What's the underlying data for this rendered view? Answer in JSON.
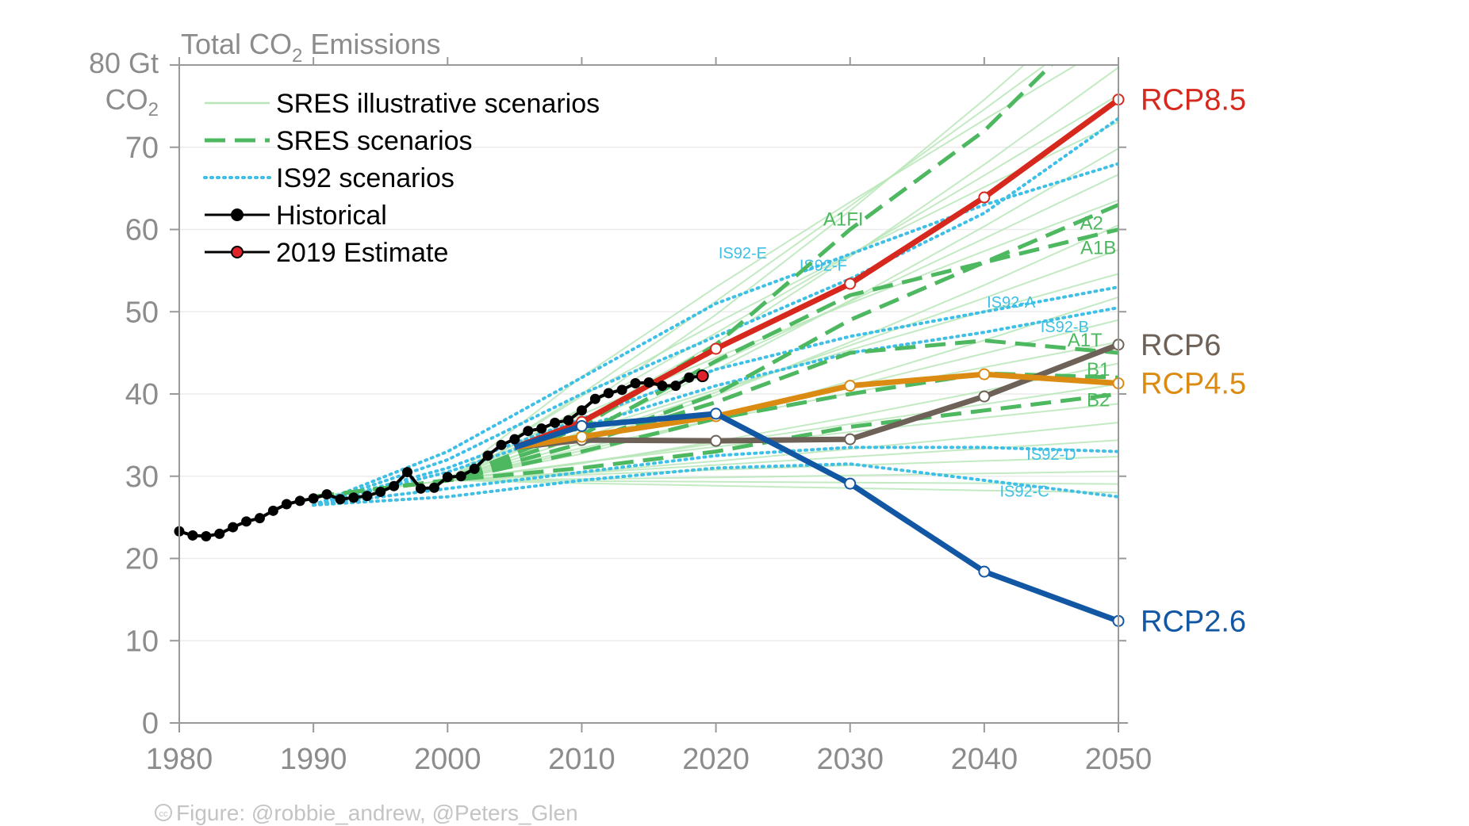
{
  "chart_data": {
    "type": "line",
    "title": "Total CO",
    "title_sub": "2",
    "title_rest": " Emissions",
    "ylabel_line1": "80 Gt",
    "ylabel_line2": "CO",
    "ylabel_sub": "2",
    "xlim": [
      1980,
      2050
    ],
    "ylim": [
      0,
      80
    ],
    "xticks": [
      1980,
      1990,
      2000,
      2010,
      2020,
      2030,
      2040,
      2050
    ],
    "xtick_labels": [
      "1980",
      "1990",
      "2000",
      "2010",
      "2020",
      "2030",
      "2040",
      "2050"
    ],
    "yticks": [
      0,
      10,
      20,
      30,
      40,
      50,
      60,
      70
    ],
    "ytick_labels": [
      "0",
      "10",
      "20",
      "30",
      "40",
      "50",
      "60",
      "70"
    ],
    "legend": [
      {
        "label": "SRES illustrative scenarios",
        "style": "sres-illus"
      },
      {
        "label": "SRES scenarios",
        "style": "sres"
      },
      {
        "label": "IS92 scenarios",
        "style": "is92"
      },
      {
        "label": "Historical",
        "style": "hist"
      },
      {
        "label": "2019 Estimate",
        "style": "est"
      }
    ],
    "historical": {
      "name": "Historical",
      "x": [
        1980,
        1981,
        1982,
        1983,
        1984,
        1985,
        1986,
        1987,
        1988,
        1989,
        1990,
        1991,
        1992,
        1993,
        1994,
        1995,
        1996,
        1997,
        1998,
        1999,
        2000,
        2001,
        2002,
        2003,
        2004,
        2005,
        2006,
        2007,
        2008,
        2009,
        2010,
        2011,
        2012,
        2013,
        2014,
        2015,
        2016,
        2017,
        2018
      ],
      "y": [
        23.3,
        22.8,
        22.7,
        23.0,
        23.8,
        24.5,
        24.9,
        25.8,
        26.6,
        27.0,
        27.3,
        27.8,
        27.2,
        27.4,
        27.6,
        28.1,
        28.8,
        30.5,
        28.5,
        28.6,
        29.9,
        30.0,
        30.9,
        32.5,
        33.8,
        34.5,
        35.5,
        35.8,
        36.5,
        36.8,
        38.0,
        39.4,
        40.1,
        40.5,
        41.3,
        41.4,
        41.0,
        41.0,
        42.0
      ]
    },
    "estimate_2019": {
      "name": "2019 Estimate",
      "x": 2019,
      "y": 42.2
    },
    "rcp": [
      {
        "name": "RCP8.5",
        "label": "RCP8.5",
        "color": "#d7281e",
        "x": [
          2005,
          2010,
          2020,
          2030,
          2040,
          2050
        ],
        "y": [
          33.5,
          36.6,
          45.5,
          53.4,
          63.9,
          75.8
        ]
      },
      {
        "name": "RCP6",
        "label": "RCP6",
        "color": "#6e6157",
        "x": [
          2005,
          2010,
          2020,
          2030,
          2040,
          2050
        ],
        "y": [
          33.5,
          34.4,
          34.3,
          34.5,
          39.7,
          46.0
        ]
      },
      {
        "name": "RCP4.5",
        "label": "RCP4.5",
        "color": "#db8b12",
        "x": [
          2005,
          2010,
          2020,
          2030,
          2040,
          2050
        ],
        "y": [
          33.5,
          34.8,
          37.3,
          41.0,
          42.4,
          41.3
        ]
      },
      {
        "name": "RCP2.6",
        "label": "RCP2.6",
        "color": "#1257a3",
        "x": [
          2005,
          2010,
          2020,
          2030,
          2040,
          2050
        ],
        "y": [
          33.5,
          36.1,
          37.6,
          29.1,
          18.4,
          12.4
        ]
      }
    ],
    "sres": [
      {
        "name": "A1FI",
        "label": "A1FI",
        "x": [
          1990,
          2000,
          2010,
          2020,
          2030,
          2040,
          2045
        ],
        "y": [
          27.5,
          29.5,
          36,
          46,
          60,
          72,
          80
        ]
      },
      {
        "name": "A2",
        "label": "A2",
        "x": [
          1990,
          2000,
          2010,
          2020,
          2030,
          2040,
          2050
        ],
        "y": [
          27.5,
          29.5,
          34,
          40,
          49,
          56,
          63
        ]
      },
      {
        "name": "A1B",
        "label": "A1B",
        "x": [
          1990,
          2000,
          2010,
          2020,
          2030,
          2040,
          2050
        ],
        "y": [
          27.5,
          29.5,
          35,
          44,
          52,
          56,
          60
        ]
      },
      {
        "name": "A1T",
        "label": "A1T",
        "x": [
          1990,
          2000,
          2010,
          2020,
          2030,
          2040,
          2050
        ],
        "y": [
          27.5,
          29.5,
          34,
          39,
          45,
          46.5,
          45
        ]
      },
      {
        "name": "B1",
        "label": "B1",
        "x": [
          1990,
          2000,
          2010,
          2020,
          2030,
          2040,
          2050
        ],
        "y": [
          27.5,
          29.5,
          33,
          37,
          40,
          42.5,
          42
        ]
      },
      {
        "name": "B2",
        "label": "B2",
        "x": [
          1990,
          2000,
          2010,
          2020,
          2030,
          2040,
          2050
        ],
        "y": [
          27.5,
          29.5,
          31,
          33,
          36,
          38,
          40
        ]
      }
    ],
    "is92": [
      {
        "name": "IS92-E",
        "label": "IS92-E",
        "x": [
          1990,
          2000,
          2010,
          2020,
          2030,
          2040,
          2050
        ],
        "y": [
          26.5,
          33,
          42,
          51,
          57,
          63,
          68
        ]
      },
      {
        "name": "IS92-F",
        "label": "IS92-F",
        "x": [
          1990,
          2000,
          2010,
          2020,
          2030,
          2040,
          2050
        ],
        "y": [
          26.5,
          32,
          40,
          47,
          54,
          62,
          73.5
        ]
      },
      {
        "name": "IS92-A",
        "label": "IS92-A",
        "x": [
          1990,
          2000,
          2010,
          2020,
          2030,
          2040,
          2050
        ],
        "y": [
          26.5,
          31,
          37,
          43,
          47,
          50,
          53
        ]
      },
      {
        "name": "IS92-B",
        "label": "IS92-B",
        "x": [
          1990,
          2000,
          2010,
          2020,
          2030,
          2040,
          2050
        ],
        "y": [
          26.5,
          30.5,
          36,
          41,
          45,
          47.5,
          50.5
        ]
      },
      {
        "name": "IS92-D",
        "label": "IS92-D",
        "x": [
          1990,
          2000,
          2010,
          2020,
          2030,
          2040,
          2050
        ],
        "y": [
          26.5,
          28.5,
          30.5,
          32.5,
          33.5,
          33.5,
          33
        ]
      },
      {
        "name": "IS92-C",
        "label": "IS92-C",
        "x": [
          1990,
          2000,
          2010,
          2020,
          2030,
          2040,
          2050
        ],
        "y": [
          26.5,
          27.5,
          29.5,
          31,
          31.5,
          29.5,
          27.5
        ]
      }
    ],
    "sres_illustrative_ranges": {
      "start_year": 2000,
      "start_value": 30,
      "end_year": 2050,
      "end_values_low": 28,
      "end_values_high": 90,
      "count": 24
    },
    "credit": "Figure: @robbie_andrew, @Peters_Glen",
    "cc_mark": "cc"
  }
}
